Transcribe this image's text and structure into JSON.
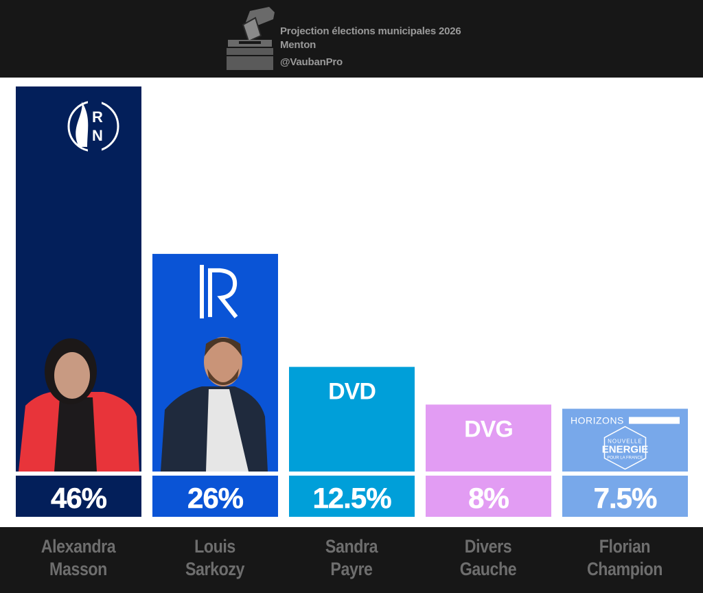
{
  "header": {
    "title": "Projection élections municipales 2026",
    "subtitle": "Menton",
    "handle": "@VaubanPro"
  },
  "candidates": [
    {
      "first": "Alexandra",
      "last": "Masson"
    },
    {
      "first": "Louis",
      "last": "Sarkozy"
    },
    {
      "first": "Sandra",
      "last": "Payre"
    },
    {
      "first": "Divers",
      "last": "Gauche"
    },
    {
      "first": "Florian",
      "last": "Champion"
    }
  ],
  "chart_data": {
    "type": "bar",
    "categories": [
      "Alexandra Masson",
      "Louis Sarkozy",
      "Sandra Payre",
      "Divers Gauche",
      "Florian Champion"
    ],
    "values": [
      46,
      26,
      12.5,
      8,
      7.5
    ],
    "value_labels": [
      "46%",
      "26%",
      "12.5%",
      "8%",
      "7.5%"
    ],
    "party_labels": [
      "RN",
      "LR",
      "DVD",
      "DVG",
      "HORIZONS"
    ],
    "logo_texts": [
      "R",
      "N",
      "NOUVELLE",
      "ENERGIE",
      "POUR LA FRANCE"
    ],
    "colors": [
      "#031f5a",
      "#0a54d6",
      "#009fd9",
      "#e29cf3",
      "#78a8ea"
    ],
    "ylim": [
      0,
      46
    ]
  }
}
